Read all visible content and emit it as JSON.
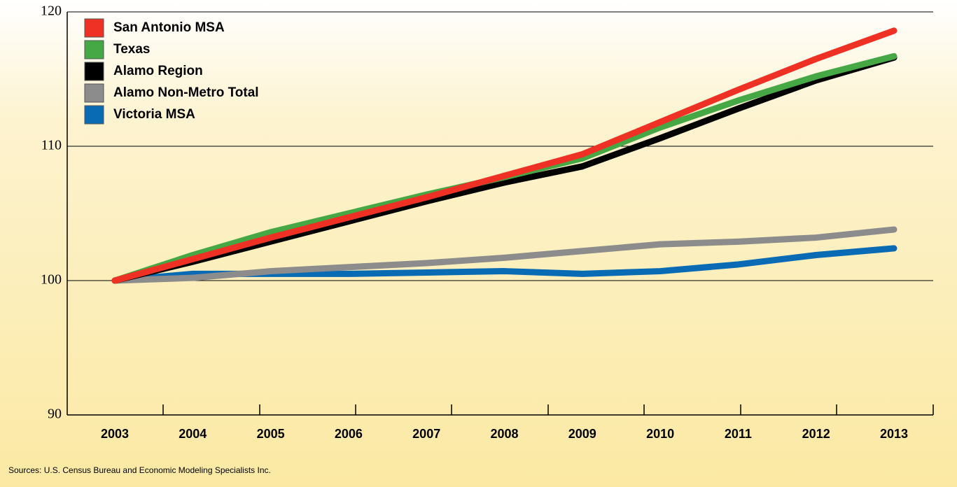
{
  "chart_data": {
    "type": "line",
    "source": "Sources: U.S. Census Bureau and Economic Modeling Specialists Inc.",
    "categories": [
      "2003",
      "2004",
      "2005",
      "2006",
      "2007",
      "2008",
      "2009",
      "2010",
      "2011",
      "2012",
      "2013"
    ],
    "ylim": [
      90,
      120
    ],
    "yticks": [
      90,
      100,
      110,
      120
    ],
    "grid": true,
    "legend": "top-left",
    "series": [
      {
        "name": "San Antonio MSA",
        "color": "#ee3124",
        "values": [
          100,
          101.6,
          103.2,
          104.7,
          106.2,
          107.8,
          109.4,
          111.8,
          114.2,
          116.5,
          118.6
        ]
      },
      {
        "name": "Texas",
        "color": "#45a845",
        "values": [
          100,
          101.9,
          103.6,
          105.0,
          106.4,
          107.7,
          109.1,
          111.4,
          113.4,
          115.2,
          116.7
        ]
      },
      {
        "name": "Alamo Region",
        "color": "#000000",
        "values": [
          100,
          101.4,
          102.9,
          104.4,
          105.9,
          107.3,
          108.5,
          110.6,
          112.8,
          114.9,
          116.6
        ]
      },
      {
        "name": "Alamo Non-Metro Total",
        "color": "#8c8c8c",
        "values": [
          100,
          100.2,
          100.7,
          101.0,
          101.3,
          101.7,
          102.2,
          102.7,
          102.9,
          103.2,
          103.8
        ]
      },
      {
        "name": "Victoria MSA",
        "color": "#0a6bb5",
        "values": [
          100,
          100.5,
          100.5,
          100.5,
          100.6,
          100.7,
          100.5,
          100.7,
          101.2,
          101.9,
          102.4
        ]
      }
    ]
  }
}
